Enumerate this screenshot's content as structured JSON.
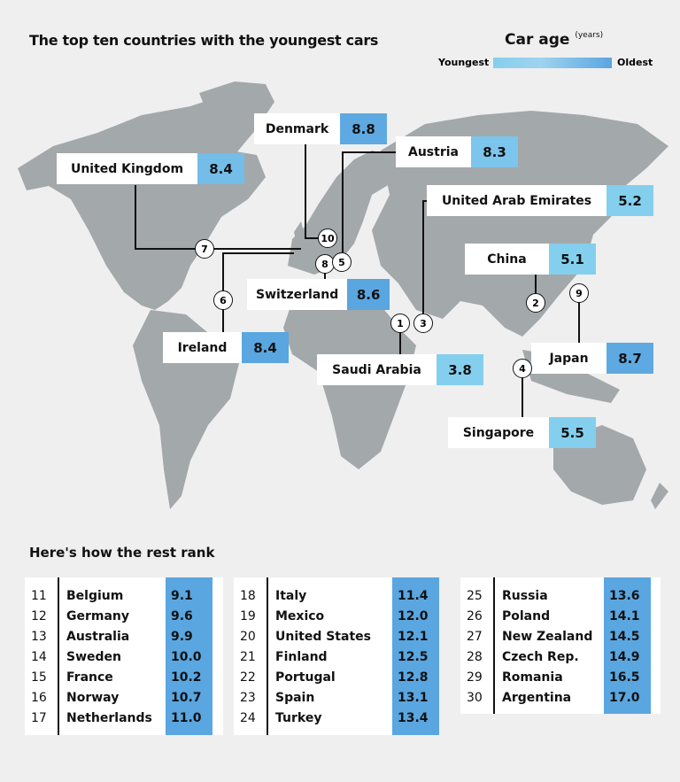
{
  "title": "The top ten countries with the youngest cars",
  "legend": {
    "title": "Car age",
    "unit": "(years)",
    "low": "Youngest",
    "high": "Oldest",
    "colors": [
      "#84cfee",
      "#5aa6e0"
    ]
  },
  "map_labels": [
    {
      "rank": "1",
      "country": "Saudi Arabia",
      "age": "3.8",
      "color": "#84cfee"
    },
    {
      "rank": "2",
      "country": "China",
      "age": "5.1",
      "color": "#84cfee"
    },
    {
      "rank": "3",
      "country": "United Arab Emirates",
      "age": "5.2",
      "color": "#84cfee"
    },
    {
      "rank": "4",
      "country": "Singapore",
      "age": "5.5",
      "color": "#84cfee"
    },
    {
      "rank": "5",
      "country": "Austria",
      "age": "8.3",
      "color": "#7cc5ec"
    },
    {
      "rank": "6",
      "country": "Ireland",
      "age": "8.4",
      "color": "#5aa6e0"
    },
    {
      "rank": "7",
      "country": "United Kingdom",
      "age": "8.4",
      "color": "#74bde8"
    },
    {
      "rank": "8",
      "country": "Switzerland",
      "age": "8.6",
      "color": "#5aa6e0"
    },
    {
      "rank": "9",
      "country": "Japan",
      "age": "8.7",
      "color": "#5ea9e1"
    },
    {
      "rank": "10",
      "country": "Denmark",
      "age": "8.8",
      "color": "#5ea9e1"
    }
  ],
  "rest_title": "Here's how the rest rank",
  "rest": [
    [
      {
        "rank": "11",
        "country": "Belgium",
        "age": "9.1"
      },
      {
        "rank": "12",
        "country": "Germany",
        "age": "9.6"
      },
      {
        "rank": "13",
        "country": "Australia",
        "age": "9.9"
      },
      {
        "rank": "14",
        "country": "Sweden",
        "age": "10.0"
      },
      {
        "rank": "15",
        "country": "France",
        "age": "10.2"
      },
      {
        "rank": "16",
        "country": "Norway",
        "age": "10.7"
      },
      {
        "rank": "17",
        "country": "Netherlands",
        "age": "11.0"
      }
    ],
    [
      {
        "rank": "18",
        "country": "Italy",
        "age": "11.4"
      },
      {
        "rank": "19",
        "country": "Mexico",
        "age": "12.0"
      },
      {
        "rank": "20",
        "country": "United States",
        "age": "12.1"
      },
      {
        "rank": "21",
        "country": "Finland",
        "age": "12.5"
      },
      {
        "rank": "22",
        "country": "Portugal",
        "age": "12.8"
      },
      {
        "rank": "23",
        "country": "Spain",
        "age": "13.1"
      },
      {
        "rank": "24",
        "country": "Turkey",
        "age": "13.4"
      }
    ],
    [
      {
        "rank": "25",
        "country": "Russia",
        "age": "13.6"
      },
      {
        "rank": "26",
        "country": "Poland",
        "age": "14.1"
      },
      {
        "rank": "27",
        "country": "New Zealand",
        "age": "14.5"
      },
      {
        "rank": "28",
        "country": "Czech Rep.",
        "age": "14.9"
      },
      {
        "rank": "29",
        "country": "Romania",
        "age": "16.5"
      },
      {
        "rank": "30",
        "country": "Argentina",
        "age": "17.0"
      }
    ]
  ]
}
